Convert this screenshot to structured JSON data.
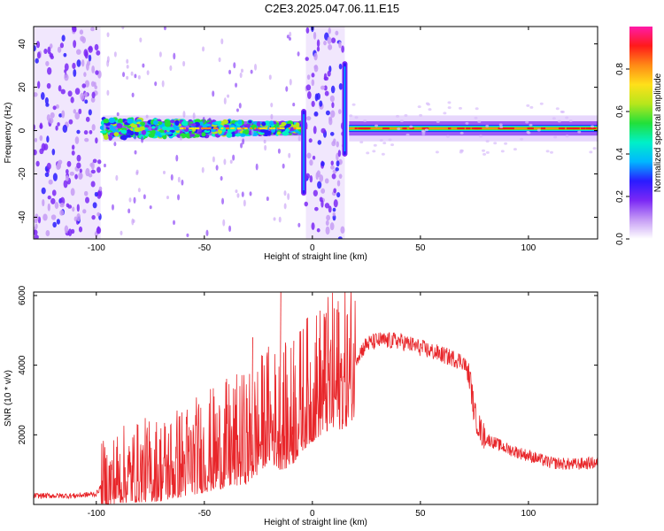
{
  "title": "C2E3.2025.047.06.11.E15",
  "colors": {
    "snr_line": "#e8262a",
    "axis": "#000000",
    "background": "#ffffff"
  },
  "chart_data": [
    {
      "type": "heatmap",
      "xlabel": "Height of straight line (km)",
      "ylabel": "Frequency (Hz)",
      "xlim": [
        -129,
        132
      ],
      "ylim": [
        -50,
        48
      ],
      "x_ticks": [
        -100,
        -50,
        0,
        50,
        100
      ],
      "y_ticks": [
        -40,
        -20,
        0,
        20,
        40
      ],
      "colorbar": {
        "label": "Normalized spectral amplitude",
        "range": [
          0,
          1
        ],
        "ticks": [
          "0.0",
          "0.2",
          "0.4",
          "0.6",
          "0.8"
        ],
        "colormap": [
          "#ffffff",
          "#c59bf5",
          "#7b28f5",
          "#2a1bff",
          "#00b7ff",
          "#00f0c8",
          "#22e03a",
          "#b7e61c",
          "#ffe01a",
          "#ff8a16",
          "#ff1a1a",
          "#ff1aa8"
        ]
      },
      "regions": [
        {
          "name": "noise",
          "x_range": [
            -129,
            -98
          ],
          "f_range": [
            -50,
            48
          ],
          "intensity": 0.25
        },
        {
          "name": "signal_band",
          "x_range": [
            -97,
            -4
          ],
          "f_center": 1,
          "intensity": 0.5
        },
        {
          "name": "noise",
          "x_range": [
            -3,
            15
          ],
          "f_range": [
            -50,
            48
          ],
          "intensity": 0.25
        },
        {
          "name": "spike",
          "x": -4,
          "f_range": [
            -30,
            10
          ]
        },
        {
          "name": "spike",
          "x": 15,
          "f_range": [
            -12,
            32
          ]
        },
        {
          "name": "signal_band",
          "x_range": [
            17,
            132
          ],
          "f_center": 1,
          "intensity": 0.9
        }
      ]
    },
    {
      "type": "line",
      "xlabel": "Height of straight line (km)",
      "ylabel": "SNR (10 * v/v)",
      "xlim": [
        -129,
        132
      ],
      "ylim": [
        0,
        6100
      ],
      "x_ticks": [
        -100,
        -50,
        0,
        50,
        100
      ],
      "y_ticks": [
        2000,
        4000,
        6000
      ],
      "series": [
        {
          "x": [
            -129,
            -110,
            -100,
            -97,
            -90,
            -80,
            -70,
            -60,
            -50,
            -40,
            -30,
            -25,
            -20,
            -15,
            -10,
            -5,
            0,
            5,
            10,
            15,
            20,
            25,
            30,
            40,
            50,
            60,
            70,
            73,
            75,
            78,
            80,
            90,
            100,
            110,
            120,
            132
          ],
          "y": [
            250,
            250,
            300,
            600,
            900,
            1000,
            1100,
            1300,
            1500,
            1700,
            1900,
            2200,
            2600,
            2400,
            2500,
            3000,
            3300,
            3600,
            3700,
            3800,
            4200,
            4600,
            4700,
            4700,
            4500,
            4300,
            4100,
            3600,
            2600,
            2100,
            1900,
            1600,
            1400,
            1200,
            1150,
            1200
          ]
        }
      ]
    }
  ]
}
